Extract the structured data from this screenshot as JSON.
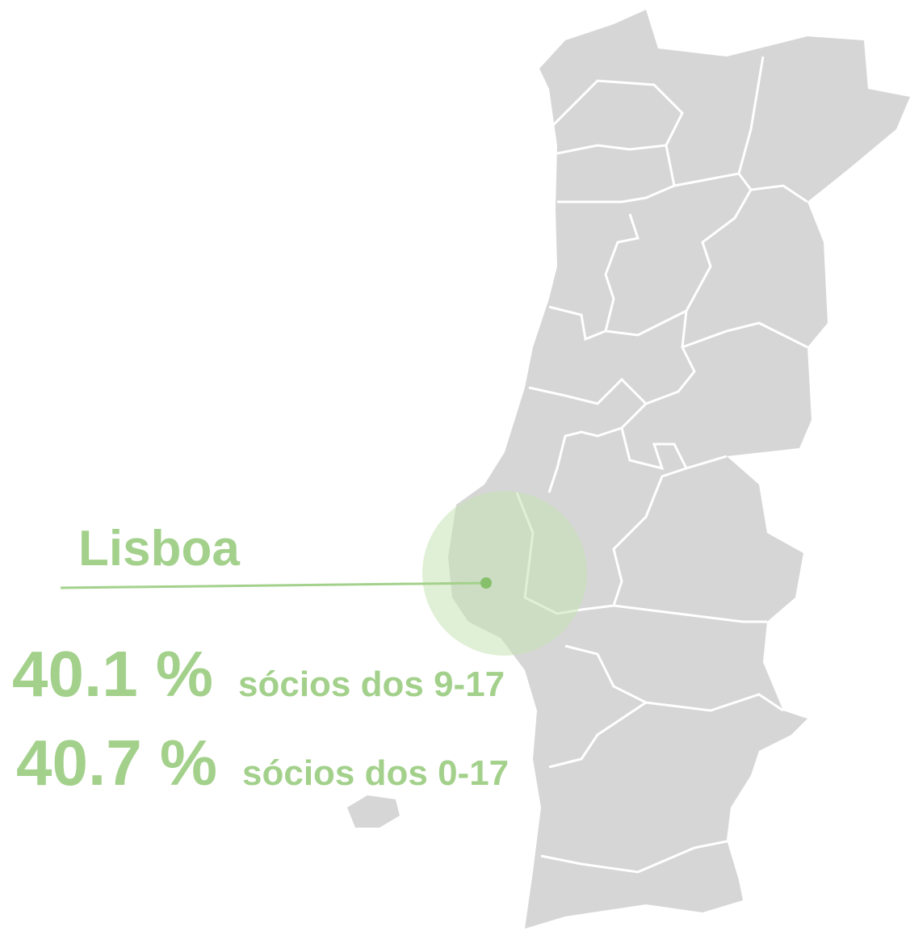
{
  "region": "Lisboa",
  "stats": [
    {
      "value": "40.1 %",
      "label": "sócios dos 9-17"
    },
    {
      "value": "40.7 %",
      "label": "sócios dos 0-17"
    }
  ]
}
